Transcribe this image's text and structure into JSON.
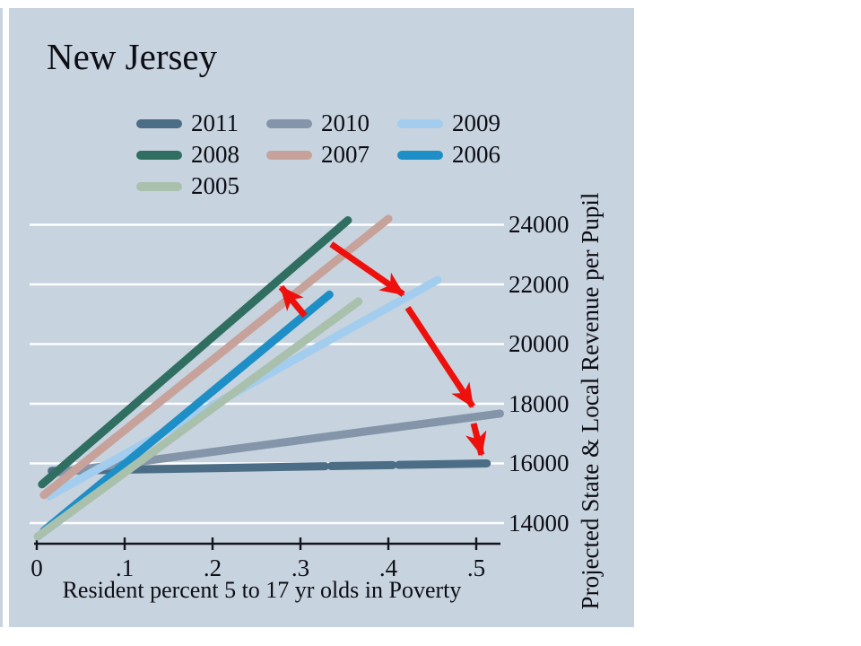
{
  "colors": {
    "panel_bg": "#c7d3de",
    "page_bg": "#ffffff",
    "text": "#0d0d15",
    "gridline": "#ffffff",
    "axis": "#15151d",
    "arrow": "#ee100c"
  },
  "legend": {
    "rows": [
      [
        "2011",
        "2010",
        "2009"
      ],
      [
        "2008",
        "2007",
        "2006"
      ],
      [
        "2005"
      ]
    ]
  },
  "chart_data": {
    "type": "line",
    "title": "New Jersey",
    "xlabel": "Resident percent 5 to 17 yr olds in Poverty",
    "ylabel": "Projected State & Local Revenue per Pupil",
    "xlim": [
      0,
      0.55
    ],
    "ylim": [
      13400,
      24800
    ],
    "x_ticks": [
      0,
      0.1,
      0.2,
      0.3,
      0.4,
      0.5
    ],
    "x_tick_labels": [
      "0",
      ".1",
      ".2",
      ".3",
      ".4",
      ".5"
    ],
    "y_ticks": [
      14000,
      16000,
      18000,
      20000,
      22000,
      24000
    ],
    "y_tick_labels": [
      "14000",
      "16000",
      "18000",
      "20000",
      "22000",
      "24000"
    ],
    "grid": "horizontal-white",
    "legend_position": "top-left",
    "series": [
      {
        "name": "2011",
        "color": "#4b6d85",
        "segments": [
          [
            [
              0.017,
              15750
            ],
            [
              0.328,
              15905
            ]
          ],
          [
            [
              0.335,
              15910
            ],
            [
              0.405,
              15945
            ]
          ],
          [
            [
              0.412,
              15950
            ],
            [
              0.512,
              16000
            ]
          ]
        ]
      },
      {
        "name": "2010",
        "color": "#8495aa",
        "segments": [
          [
            [
              0.025,
              15700
            ],
            [
              0.527,
              17670
            ]
          ]
        ]
      },
      {
        "name": "2009",
        "color": "#a2cdee",
        "segments": [
          [
            [
              0.014,
              14900
            ],
            [
              0.456,
              22150
            ]
          ]
        ]
      },
      {
        "name": "2008",
        "color": "#2f6e60",
        "segments": [
          [
            [
              0.006,
              15300
            ],
            [
              0.354,
              24150
            ]
          ]
        ]
      },
      {
        "name": "2007",
        "color": "#c7a29b",
        "segments": [
          [
            [
              0.008,
              14940
            ],
            [
              0.4,
              24200
            ]
          ]
        ]
      },
      {
        "name": "2006",
        "color": "#1d8fc6",
        "segments": [
          [
            [
              0.008,
              13740
            ],
            [
              0.333,
              21660
            ]
          ]
        ]
      },
      {
        "name": "2005",
        "color": "#a9c0ad",
        "segments": [
          [
            [
              0.001,
              13550
            ],
            [
              0.366,
              21430
            ]
          ]
        ]
      }
    ],
    "annotations": {
      "arrows": [
        {
          "from": [
            0.305,
            20950
          ],
          "to": [
            0.278,
            21910
          ]
        },
        {
          "from": [
            0.335,
            23350
          ],
          "to": [
            0.417,
            21670
          ]
        },
        {
          "from": [
            0.422,
            21220
          ],
          "to": [
            0.496,
            17910
          ]
        },
        {
          "from": [
            0.497,
            17340
          ],
          "to": [
            0.506,
            16290
          ]
        }
      ]
    }
  }
}
